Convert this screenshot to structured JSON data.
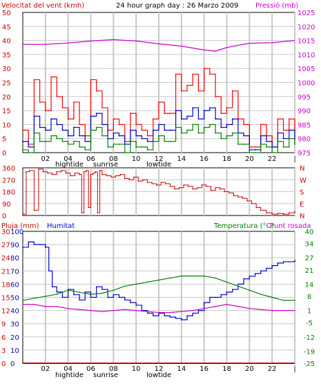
{
  "header": {
    "wind_label": "Velocitat del vent (kmh)",
    "title": "24 hour graph day : 26 Marzo 2009",
    "pressure_label": "Pressió (mb)"
  },
  "bottom_header": {
    "rain_label": "Pluja (mm)",
    "humidity_label": "Humitat",
    "temp_label": "Temperatura (°C)",
    "dew_label": "Punt rosada"
  },
  "x_ticks": [
    "02",
    "04",
    "06",
    "08",
    "10",
    "12",
    "14",
    "16",
    "18",
    "20",
    "22",
    "|"
  ],
  "tide_labels": {
    "hightide": "hightide",
    "sunrise": "sunrise",
    "lowtide": "lowtide"
  },
  "colors": {
    "wind_gust": "#ff0000",
    "wind_avg": "#0000cc",
    "wind_low": "#008000",
    "pressure": "#cc00cc",
    "direction": "#cc0000",
    "humidity": "#0000cc",
    "temperature": "#008000",
    "dewpoint": "#cc00cc",
    "rain": "#cc0000",
    "grid": "#c8c8c8"
  },
  "chart_data": [
    {
      "type": "line",
      "title": "24 hour graph day : 26 Marzo 2009",
      "x_unit": "hour",
      "xlim": [
        0,
        24
      ],
      "y_left": {
        "label": "Velocitat del vent (kmh)",
        "ticks": [
          0,
          5,
          10,
          15,
          20,
          25,
          30,
          35,
          40,
          45,
          50
        ],
        "ylim": [
          0,
          50
        ]
      },
      "y_right": {
        "label": "Pressió (mb)",
        "ticks": [
          975,
          980,
          985,
          990,
          995,
          1000,
          1005,
          1010,
          1015,
          1020,
          1025
        ],
        "ylim": [
          975,
          1025
        ]
      },
      "series": [
        {
          "name": "gust",
          "axis": "left",
          "x": [
            0,
            0.5,
            1,
            1.5,
            2,
            2.5,
            3,
            3.5,
            4,
            4.5,
            5,
            5.5,
            6,
            6.5,
            7,
            7.5,
            8,
            8.5,
            9,
            9.5,
            10,
            10.5,
            11,
            11.5,
            12,
            12.5,
            13,
            13.5,
            14,
            14.5,
            15,
            15.5,
            16,
            16.5,
            17,
            17.5,
            18,
            18.5,
            19,
            19.5,
            20,
            20.5,
            21,
            21.5,
            22,
            22.5,
            23,
            23.5,
            24
          ],
          "y": [
            8,
            3,
            26,
            18,
            15,
            27,
            20,
            16,
            12,
            18,
            10,
            6,
            26,
            22,
            16,
            8,
            12,
            10,
            4,
            14,
            10,
            8,
            6,
            12,
            18,
            14,
            14,
            28,
            22,
            24,
            28,
            22,
            30,
            28,
            20,
            14,
            16,
            22,
            12,
            10,
            2,
            2,
            10,
            6,
            2,
            12,
            8,
            12,
            8
          ]
        },
        {
          "name": "avg",
          "axis": "left",
          "x": [
            0,
            0.5,
            1,
            1.5,
            2,
            2.5,
            3,
            3.5,
            4,
            4.5,
            5,
            5.5,
            6,
            6.5,
            7,
            7.5,
            8,
            8.5,
            9,
            9.5,
            10,
            10.5,
            11,
            11.5,
            12,
            12.5,
            13,
            13.5,
            14,
            14.5,
            15,
            15.5,
            16,
            16.5,
            17,
            17.5,
            18,
            18.5,
            19,
            19.5,
            20,
            20.5,
            21,
            21.5,
            22,
            22.5,
            23,
            23.5,
            24
          ],
          "y": [
            4,
            2,
            13,
            9,
            8,
            12,
            10,
            8,
            6,
            9,
            6,
            4,
            13,
            14,
            10,
            5,
            7,
            6,
            3,
            8,
            6,
            5,
            4,
            8,
            10,
            8,
            8,
            15,
            12,
            13,
            16,
            12,
            15,
            16,
            12,
            9,
            10,
            12,
            7,
            6,
            1,
            1,
            6,
            4,
            2,
            7,
            5,
            8,
            5
          ]
        },
        {
          "name": "low",
          "axis": "left",
          "x": [
            0,
            0.5,
            1,
            1.5,
            2,
            2.5,
            3,
            3.5,
            4,
            4.5,
            5,
            5.5,
            6,
            6.5,
            7,
            7.5,
            8,
            8.5,
            9,
            9.5,
            10,
            10.5,
            11,
            11.5,
            12,
            12.5,
            13,
            13.5,
            14,
            14.5,
            15,
            15.5,
            16,
            16.5,
            17,
            17.5,
            18,
            18.5,
            19,
            19.5,
            20,
            20.5,
            21,
            21.5,
            22,
            22.5,
            23,
            23.5,
            24
          ],
          "y": [
            1,
            0,
            7,
            4,
            4,
            6,
            5,
            4,
            3,
            4,
            2,
            1,
            8,
            9,
            6,
            2,
            3,
            3,
            0,
            4,
            2,
            2,
            1,
            4,
            6,
            4,
            4,
            9,
            7,
            8,
            10,
            7,
            9,
            10,
            7,
            5,
            6,
            7,
            3,
            3,
            0,
            0,
            3,
            2,
            0,
            4,
            2,
            5,
            3
          ]
        },
        {
          "name": "pressure",
          "axis": "right",
          "x": [
            0,
            2,
            4,
            6,
            8,
            10,
            12,
            14,
            16,
            17,
            18,
            20,
            22,
            24
          ],
          "y": [
            1013.6,
            1013.6,
            1014.1,
            1014.8,
            1015.3,
            1014.8,
            1013.8,
            1013.0,
            1011.6,
            1011.2,
            1012.5,
            1014.0,
            1014.2,
            1015.0
          ]
        }
      ]
    },
    {
      "type": "line",
      "x_unit": "hour",
      "xlim": [
        0,
        24
      ],
      "y_left": {
        "ticks": [
          0,
          90,
          180,
          270,
          360
        ],
        "ylim": [
          0,
          360
        ]
      },
      "y_right": {
        "ticks": [
          "N",
          "E",
          "S",
          "W",
          "N"
        ]
      },
      "series": [
        {
          "name": "direction",
          "x": [
            0,
            0.3,
            0.6,
            1.0,
            1.4,
            1.8,
            2.2,
            2.6,
            3.0,
            3.4,
            3.8,
            4.2,
            4.6,
            5.0,
            5.2,
            5.4,
            5.6,
            5.8,
            6.0,
            6.2,
            6.4,
            6.6,
            6.8,
            7.0,
            7.4,
            7.8,
            8.2,
            8.6,
            9.0,
            9.4,
            9.8,
            10.2,
            10.6,
            11.0,
            11.4,
            11.8,
            12.2,
            12.6,
            13.0,
            13.4,
            13.8,
            14.2,
            14.6,
            15.0,
            15.4,
            15.8,
            16.2,
            16.6,
            17.0,
            17.4,
            17.8,
            18.2,
            18.6,
            19.0,
            19.4,
            19.8,
            20.2,
            20.6,
            21.0,
            21.5,
            22.0,
            22.5,
            23.0,
            23.5,
            24.0
          ],
          "y": [
            10,
            330,
            340,
            40,
            350,
            330,
            320,
            310,
            330,
            340,
            320,
            300,
            320,
            310,
            20,
            330,
            340,
            60,
            310,
            320,
            330,
            20,
            340,
            310,
            300,
            290,
            300,
            310,
            280,
            270,
            290,
            260,
            270,
            250,
            240,
            230,
            250,
            240,
            220,
            200,
            210,
            230,
            220,
            200,
            210,
            230,
            220,
            190,
            210,
            200,
            180,
            170,
            150,
            140,
            130,
            110,
            90,
            60,
            40,
            20,
            10,
            15,
            10,
            20,
            30
          ]
        }
      ]
    },
    {
      "type": "line",
      "x_unit": "hour",
      "xlim": [
        0,
        24
      ],
      "y_left": {
        "label": "Pluja (mm)",
        "ticks": [
          0,
          3,
          6,
          9,
          12,
          15,
          18,
          21,
          24,
          27,
          30
        ],
        "ylim": [
          0,
          30
        ]
      },
      "y_left2": {
        "label": "Humitat",
        "ticks": [
          0,
          10,
          20,
          30,
          40,
          50,
          60,
          70,
          80,
          90,
          100
        ],
        "ylim": [
          0,
          100
        ]
      },
      "y_right": {
        "label": "Temperatura (°C)",
        "ticks": [
          -25,
          -19,
          -12,
          -5,
          1,
          8,
          14,
          21,
          27,
          34,
          40
        ],
        "ylim": [
          -25,
          40
        ]
      },
      "series": [
        {
          "name": "Humitat",
          "axis": "humidity",
          "x": [
            0,
            0.5,
            1,
            1.5,
            2,
            2.3,
            2.6,
            3,
            3.5,
            4,
            4.5,
            5,
            5.5,
            6,
            6.5,
            7,
            7.5,
            8,
            8.5,
            9,
            9.5,
            10,
            10.5,
            11,
            11.5,
            12,
            12.5,
            13,
            13.5,
            14,
            14.5,
            15,
            15.5,
            16,
            16.5,
            17,
            17.5,
            18,
            18.5,
            19,
            19.5,
            20,
            20.5,
            21,
            21.5,
            22,
            22.5,
            23,
            23.5,
            24
          ],
          "y": [
            88,
            92,
            90,
            90,
            88,
            70,
            58,
            54,
            50,
            56,
            52,
            48,
            54,
            50,
            58,
            56,
            50,
            52,
            50,
            48,
            46,
            44,
            40,
            38,
            36,
            38,
            36,
            35,
            34,
            33,
            36,
            38,
            40,
            46,
            50,
            50,
            52,
            54,
            56,
            60,
            64,
            66,
            68,
            70,
            72,
            74,
            76,
            77,
            77,
            78
          ]
        },
        {
          "name": "Temperatura",
          "axis": "temperature",
          "x": [
            0,
            1,
            2,
            3,
            4,
            5,
            6,
            7,
            8,
            9,
            10,
            11,
            12,
            13,
            14,
            15,
            16,
            17,
            18,
            19,
            20,
            21,
            22,
            23,
            24
          ],
          "y": [
            6,
            7,
            8,
            9,
            11,
            10,
            9,
            9.5,
            11,
            13,
            14,
            15,
            16,
            17,
            18,
            18,
            18,
            17,
            15,
            13,
            11,
            9,
            7.5,
            6,
            6
          ]
        },
        {
          "name": "Punt rosada",
          "axis": "temperature",
          "x": [
            0,
            1,
            2,
            3,
            4,
            5,
            6,
            7,
            8,
            9,
            10,
            11,
            12,
            13,
            14,
            15,
            16,
            17,
            18,
            19,
            20,
            21,
            22,
            23,
            24
          ],
          "y": [
            4,
            4,
            3,
            3,
            2,
            1.5,
            1,
            0.5,
            1,
            1.5,
            1,
            0.5,
            0,
            0,
            0.5,
            1,
            2,
            3,
            4,
            3,
            2,
            1.5,
            1,
            1,
            1
          ]
        },
        {
          "name": "Pluja",
          "axis": "rain",
          "x": [
            0,
            24
          ],
          "y": [
            0,
            0
          ]
        }
      ]
    }
  ]
}
